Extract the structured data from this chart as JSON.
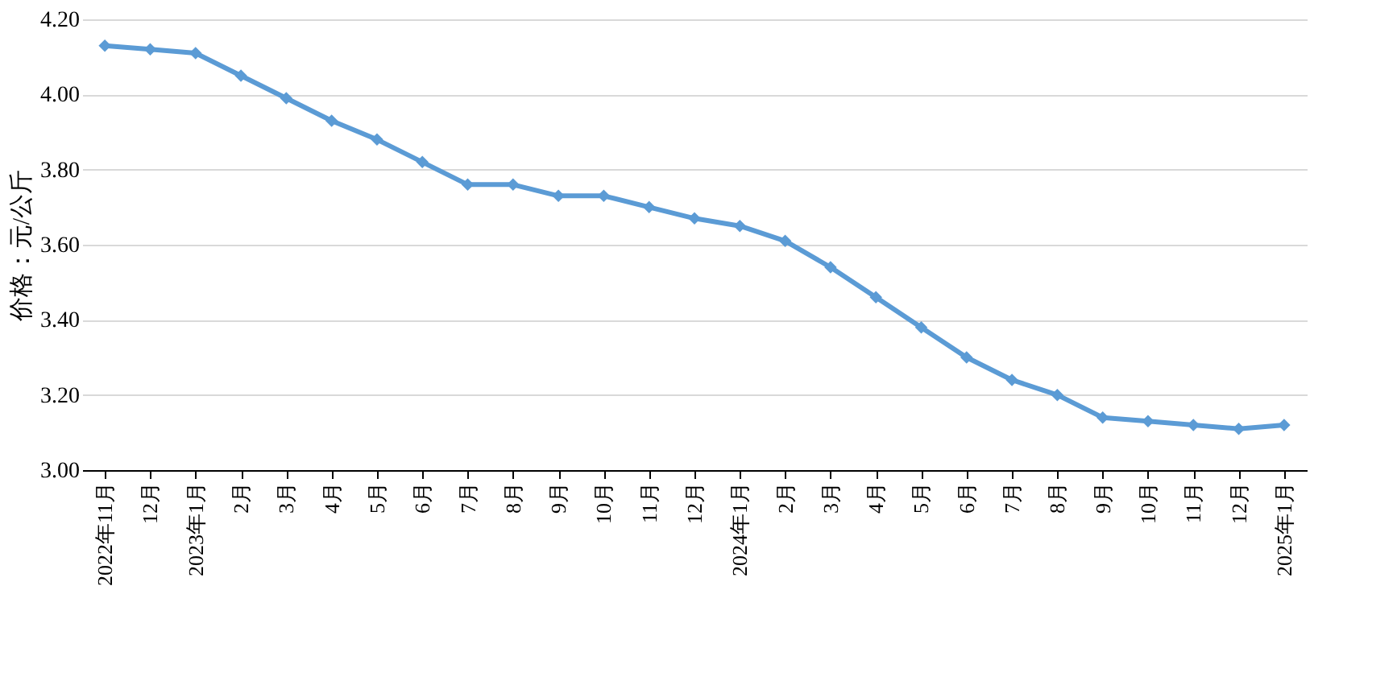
{
  "chart_data": {
    "type": "line",
    "ylabel": "价格：元/公斤",
    "categories": [
      "2022年11月",
      "12月",
      "2023年1月",
      "2月",
      "3月",
      "4月",
      "5月",
      "6月",
      "7月",
      "8月",
      "9月",
      "10月",
      "11月",
      "12月",
      "2024年1月",
      "2月",
      "3月",
      "4月",
      "5月",
      "6月",
      "7月",
      "8月",
      "9月",
      "10月",
      "11月",
      "12月",
      "2025年1月"
    ],
    "series": [
      {
        "color": "#5b9bd5",
        "values": [
          4.13,
          4.12,
          4.11,
          4.05,
          3.99,
          3.93,
          3.88,
          3.82,
          3.76,
          3.76,
          3.73,
          3.73,
          3.7,
          3.67,
          3.65,
          3.61,
          3.54,
          3.46,
          3.38,
          3.3,
          3.24,
          3.2,
          3.14,
          3.13,
          3.12,
          3.11,
          3.12
        ]
      }
    ],
    "ylim": [
      3.0,
      4.2
    ],
    "yticks": [
      {
        "value": 3.0,
        "label": "3.00"
      },
      {
        "value": 3.2,
        "label": "3.20"
      },
      {
        "value": 3.4,
        "label": "3.40"
      },
      {
        "value": 3.6,
        "label": "3.60"
      },
      {
        "value": 3.8,
        "label": "3.80"
      },
      {
        "value": 4.0,
        "label": "4.00"
      },
      {
        "value": 4.2,
        "label": "4.20"
      }
    ],
    "grid": "y",
    "marker": "diamond",
    "line_style": "solid"
  }
}
